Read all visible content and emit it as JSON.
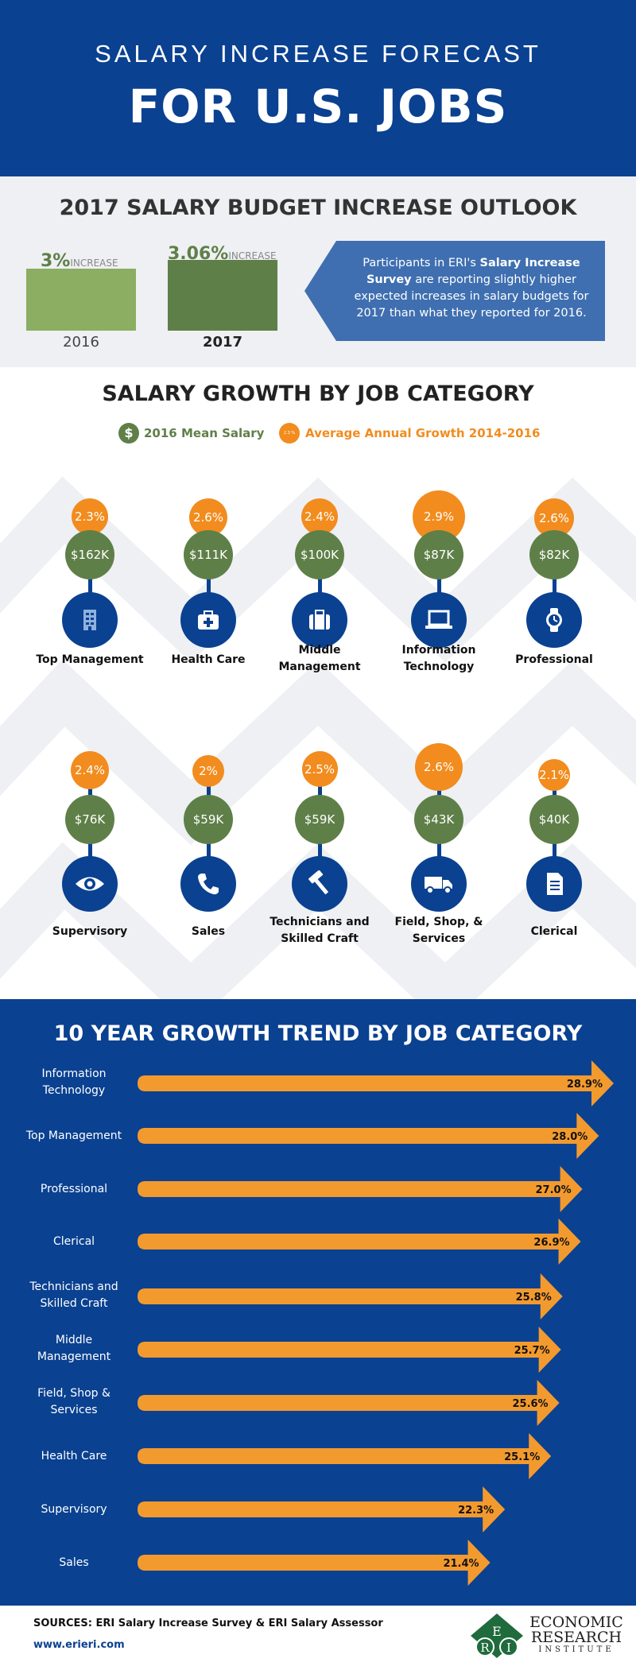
{
  "header": {
    "subtitle": "SALARY INCREASE FORECAST",
    "title": "FOR U.S. JOBS"
  },
  "budget": {
    "title": "2017 SALARY BUDGET INCREASE OUTLOOK",
    "bars": [
      {
        "year": "2016",
        "pct": "3%",
        "word": "INCREASE",
        "value": 3.0,
        "color": "#8bae63"
      },
      {
        "year": "2017",
        "pct": "3.06%",
        "word": "INCREASE",
        "value": 3.06,
        "color": "#5f7f48"
      }
    ],
    "callout_pre": "Participants in ERI's ",
    "callout_bold": "Salary Increase Survey",
    "callout_post": " are reporting slightly higher expected increases in salary budgets for 2017 than what they reported for 2016."
  },
  "growth": {
    "title": "SALARY GROWTH BY JOB CATEGORY",
    "legend_salary": "2016 Mean Salary",
    "legend_growth": "Average Annual Growth 2014-2016",
    "legend_salary_icon": "$",
    "legend_growth_icon": "2.3 %",
    "categories": [
      {
        "name": "Top Management",
        "growth": "2.3%",
        "salary": "$162K",
        "icon": "building-icon"
      },
      {
        "name": "Health Care",
        "growth": "2.6%",
        "salary": "$111K",
        "icon": "medical-bag-icon"
      },
      {
        "name": "Middle Management",
        "growth": "2.4%",
        "salary": "$100K",
        "icon": "briefcase-icon"
      },
      {
        "name": "Information Technology",
        "growth": "2.9%",
        "salary": "$87K",
        "icon": "laptop-icon"
      },
      {
        "name": "Professional",
        "growth": "2.6%",
        "salary": "$82K",
        "icon": "watch-icon"
      },
      {
        "name": "Supervisory",
        "growth": "2.4%",
        "salary": "$76K",
        "icon": "eye-icon"
      },
      {
        "name": "Sales",
        "growth": "2%",
        "salary": "$59K",
        "icon": "phone-icon"
      },
      {
        "name": "Technicians and Skilled Craft",
        "growth": "2.5%",
        "salary": "$59K",
        "icon": "hammer-icon"
      },
      {
        "name": "Field, Shop, & Services",
        "growth": "2.6%",
        "salary": "$43K",
        "icon": "truck-icon"
      },
      {
        "name": "Clerical",
        "growth": "2.1%",
        "salary": "$40K",
        "icon": "document-icon"
      }
    ]
  },
  "trend": {
    "title": "10 YEAR GROWTH TREND BY JOB CATEGORY",
    "labels_pct": [
      "28.9%",
      "28.0%",
      "27.0%",
      "26.9%",
      "25.8%",
      "25.7%",
      "25.6%",
      "25.1%",
      "22.3%",
      "21.4%"
    ]
  },
  "chart_data": {
    "type": "bar",
    "title": "10 YEAR GROWTH TREND BY JOB CATEGORY",
    "categories": [
      "Information Technology",
      "Top Management",
      "Professional",
      "Clerical",
      "Technicians and Skilled Craft",
      "Middle Management",
      "Field, Shop & Services",
      "Health Care",
      "Supervisory",
      "Sales"
    ],
    "values": [
      28.9,
      28.0,
      27.0,
      26.9,
      25.8,
      25.7,
      25.6,
      25.1,
      22.3,
      21.4
    ],
    "orientation": "horizontal",
    "color": "#f39a2e"
  },
  "footer": {
    "sources": "SOURCES: ERI Salary Increase Survey & ERI Salary Assessor",
    "url": "www.erieri.com",
    "logo_line1": "ECONOMIC",
    "logo_line2": "RESEARCH",
    "logo_line3": "INSTITUTE",
    "logo_letters": [
      "E",
      "R",
      "I"
    ]
  },
  "colors": {
    "navy": "#0a4191",
    "orange": "#f28c1e",
    "green": "#5f7f48",
    "light_green": "#8bae63",
    "callout_blue": "#3f6fb0"
  }
}
